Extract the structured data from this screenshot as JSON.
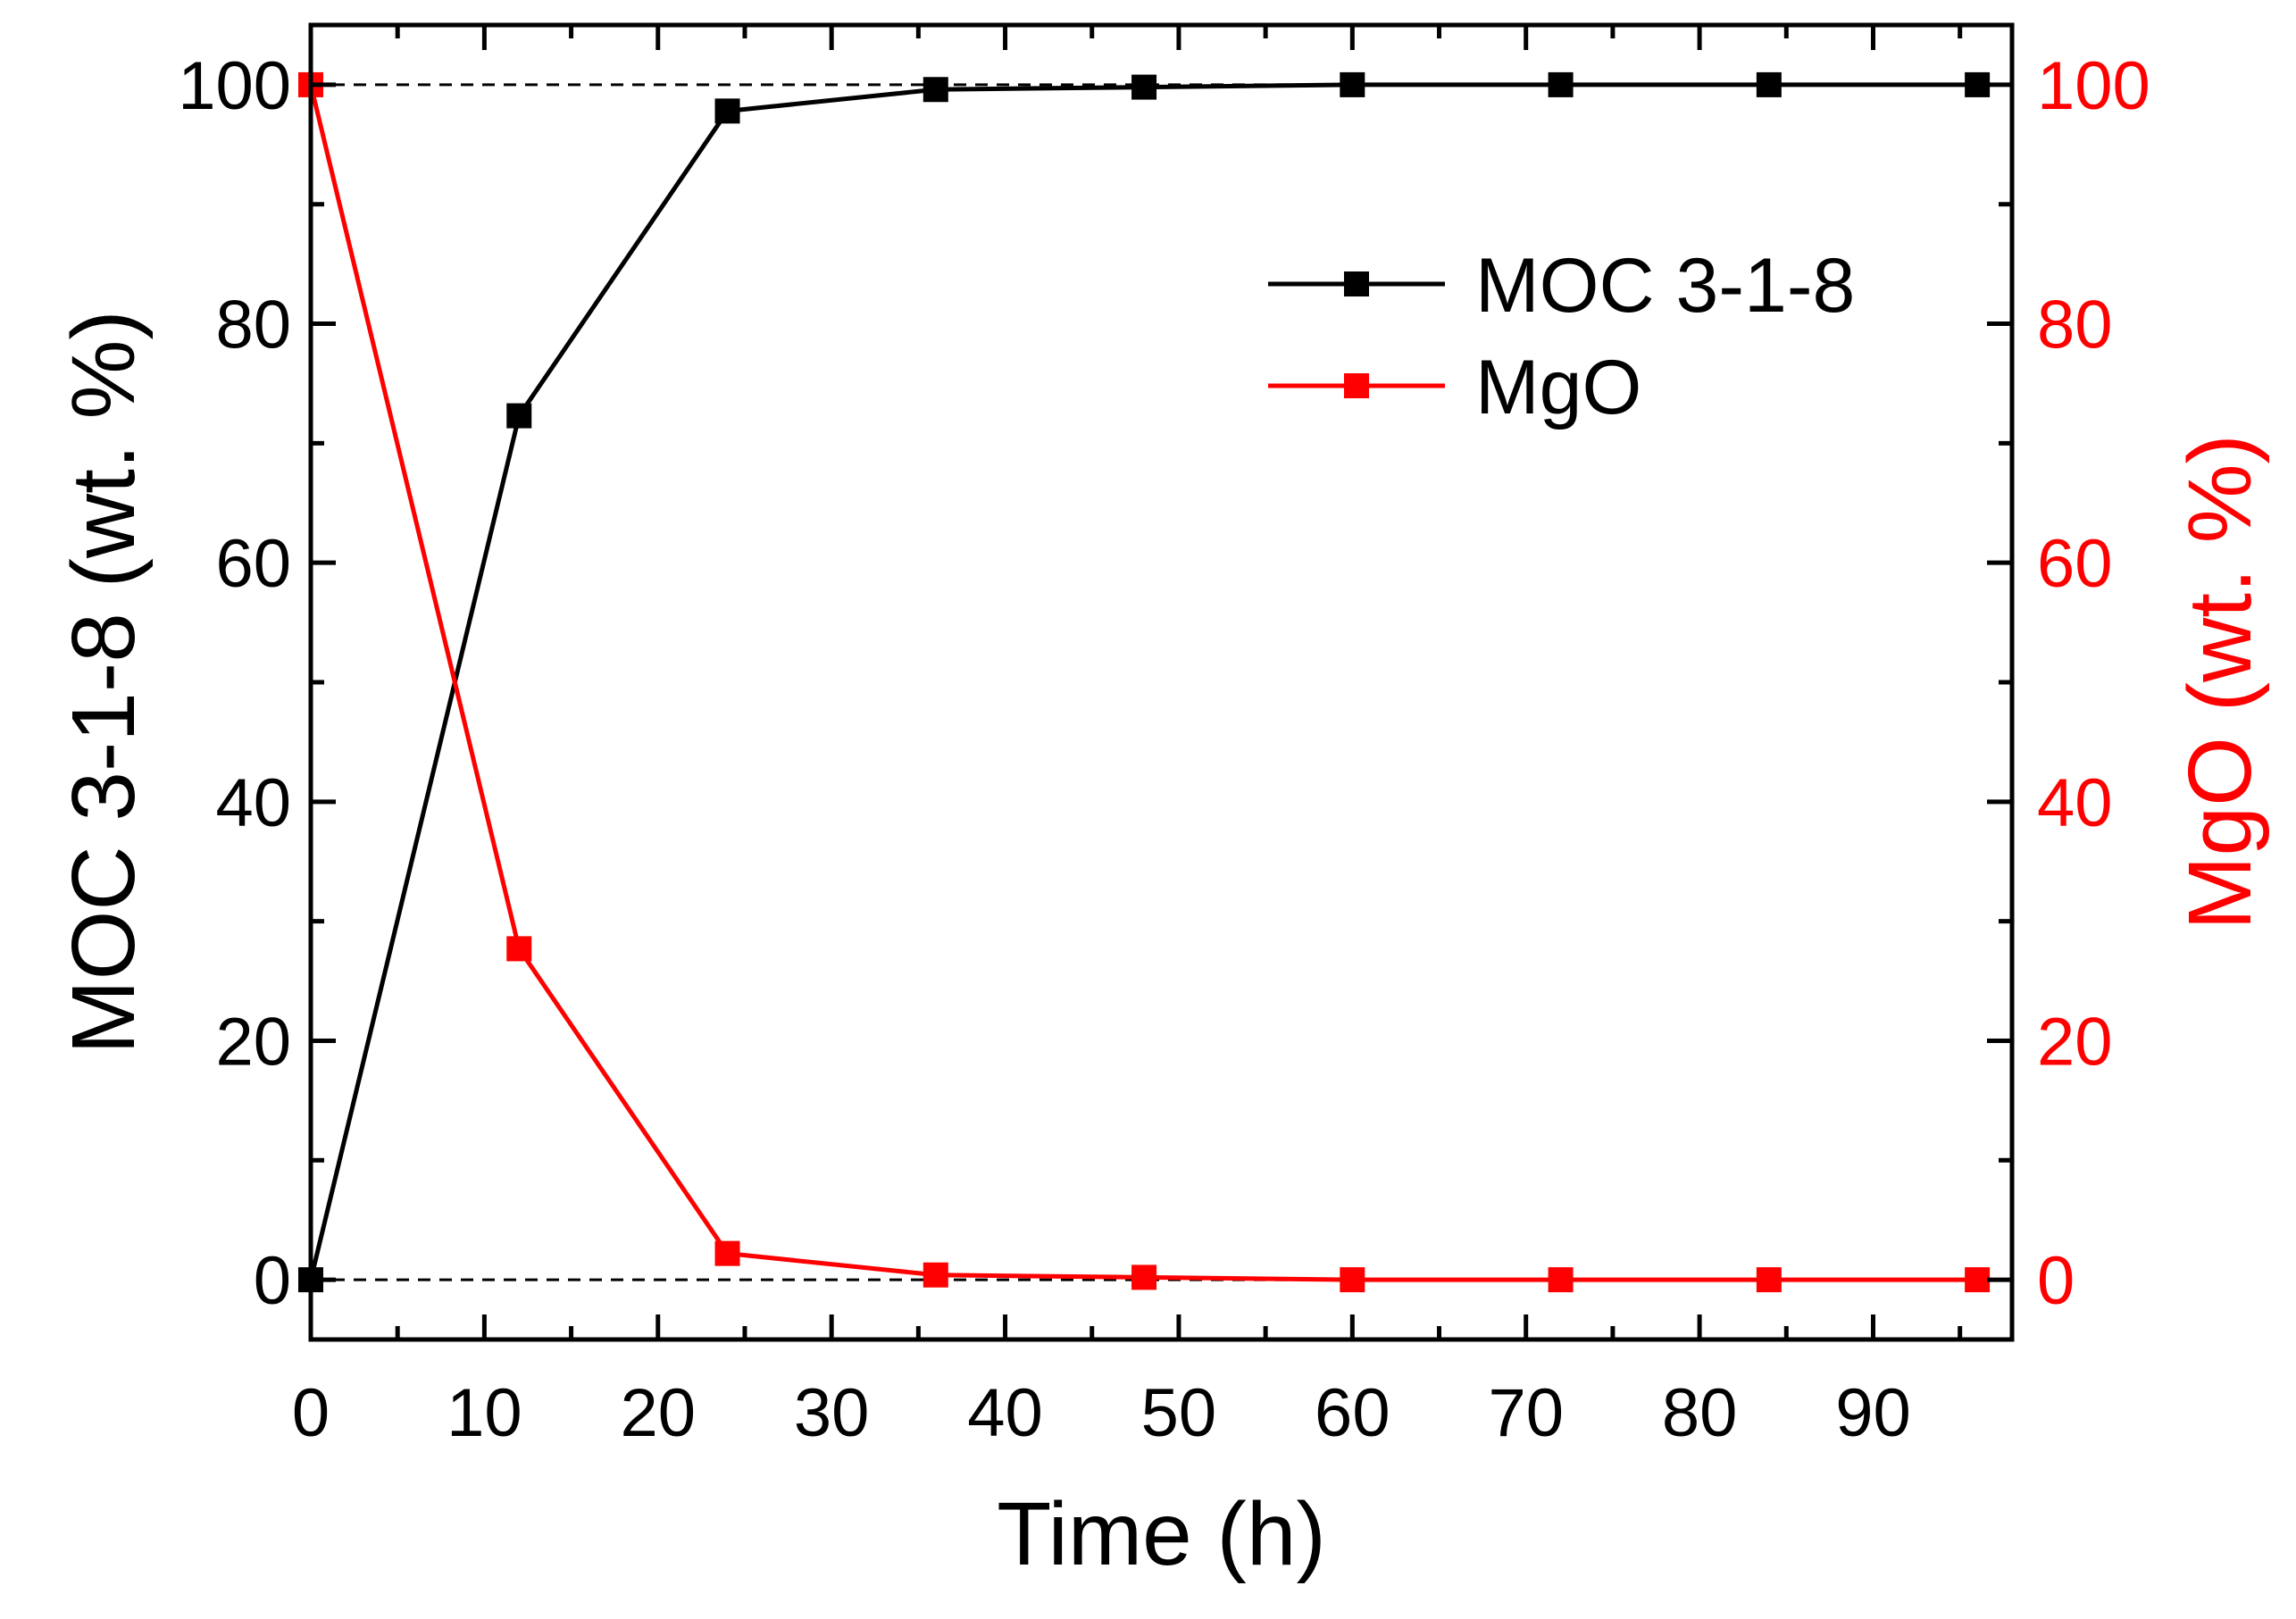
{
  "chart_data": {
    "type": "line",
    "title": "",
    "xlabel": "Time (h)",
    "ylabel_left": "MOC 3-1-8 (wt. %)",
    "ylabel_right": "MgO (wt. %)",
    "xlim": [
      0,
      98
    ],
    "ylim": [
      -5,
      105
    ],
    "xticks": [
      0,
      10,
      20,
      30,
      40,
      50,
      60,
      70,
      80,
      90
    ],
    "xtick_labels": [
      "0",
      "10",
      "20",
      "30",
      "40",
      "50",
      "60",
      "70",
      "80",
      "90"
    ],
    "yticks": [
      0,
      20,
      40,
      60,
      80,
      100
    ],
    "ytick_labels": [
      "0",
      "20",
      "40",
      "60",
      "80",
      "100"
    ],
    "reference_lines": [
      0,
      100
    ],
    "legend_position": "top-right",
    "series": [
      {
        "name": "MOC 3-1-8",
        "color": "#000000",
        "axis": "left",
        "x": [
          0,
          12,
          24,
          36,
          48,
          60,
          72,
          84,
          96
        ],
        "y": [
          0,
          72.3,
          97.8,
          99.6,
          99.8,
          100,
          100,
          100,
          100
        ]
      },
      {
        "name": "MgO",
        "color": "#ff0000",
        "axis": "right",
        "x": [
          0,
          12,
          24,
          36,
          48,
          60,
          72,
          84,
          96
        ],
        "y": [
          100,
          27.7,
          2.2,
          0.4,
          0.2,
          0,
          0,
          0,
          0
        ]
      }
    ]
  }
}
